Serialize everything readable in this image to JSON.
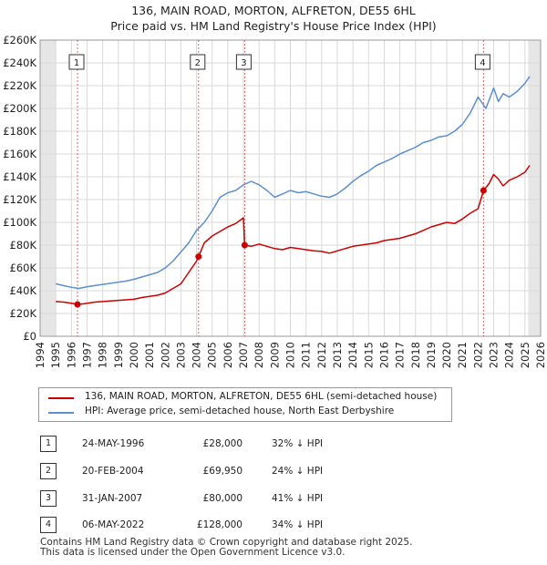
{
  "title_line1": "136, MAIN ROAD, MORTON, ALFRETON, DE55 6HL",
  "title_line2": "Price paid vs. HM Land Registry's House Price Index (HPI)",
  "chart_data": {
    "type": "line",
    "title": "136, MAIN ROAD, MORTON, ALFRETON, DE55 6HL — Price paid vs. HM Land Registry's House Price Index (HPI)",
    "xlabel": "",
    "ylabel": "",
    "xlim": [
      1994,
      2026
    ],
    "ylim": [
      0,
      260000
    ],
    "x_ticks": [
      1994,
      1995,
      1996,
      1997,
      1998,
      1999,
      2000,
      2001,
      2002,
      2003,
      2004,
      2005,
      2006,
      2007,
      2008,
      2009,
      2010,
      2011,
      2012,
      2013,
      2014,
      2015,
      2016,
      2017,
      2018,
      2019,
      2020,
      2021,
      2022,
      2023,
      2024,
      2025,
      2026
    ],
    "y_ticks": [
      0,
      20000,
      40000,
      60000,
      80000,
      100000,
      120000,
      140000,
      160000,
      180000,
      200000,
      220000,
      240000,
      260000
    ],
    "y_tick_labels": [
      "£0",
      "£20K",
      "£40K",
      "£60K",
      "£80K",
      "£100K",
      "£120K",
      "£140K",
      "£160K",
      "£180K",
      "£200K",
      "£220K",
      "£240K",
      "£260K"
    ],
    "grid": true,
    "shaded_regions": [
      [
        1994,
        1995
      ],
      [
        2025.2,
        2026
      ]
    ],
    "series": [
      {
        "name": "136, MAIN ROAD, MORTON, ALFRETON, DE55 6HL (semi-detached house)",
        "color": "#cc0000",
        "x": [
          1995.0,
          1995.5,
          1996.0,
          1996.39,
          1996.8,
          1997.5,
          1998.0,
          1998.5,
          1999.0,
          1999.5,
          2000.0,
          2000.5,
          2001.0,
          2001.5,
          2002.0,
          2002.5,
          2003.0,
          2003.5,
          2004.0,
          2004.13,
          2004.5,
          2005.0,
          2005.5,
          2006.0,
          2006.5,
          2007.0,
          2007.08,
          2007.5,
          2008.0,
          2008.5,
          2009.0,
          2009.5,
          2010.0,
          2010.5,
          2011.0,
          2011.5,
          2012.0,
          2012.5,
          2013.0,
          2013.5,
          2014.0,
          2014.5,
          2015.0,
          2015.5,
          2016.0,
          2016.5,
          2017.0,
          2017.5,
          2018.0,
          2018.5,
          2019.0,
          2019.5,
          2020.0,
          2020.5,
          2021.0,
          2021.5,
          2022.0,
          2022.35,
          2022.7,
          2023.0,
          2023.3,
          2023.6,
          2024.0,
          2024.5,
          2025.0,
          2025.3
        ],
        "values": [
          30500,
          30000,
          29000,
          28000,
          28500,
          30000,
          30500,
          31000,
          31500,
          32000,
          32500,
          34000,
          35000,
          36000,
          38000,
          42000,
          46000,
          56000,
          66000,
          69950,
          82000,
          88000,
          92000,
          96000,
          99000,
          104000,
          80000,
          79000,
          81000,
          79000,
          77000,
          76000,
          78000,
          77000,
          76000,
          75000,
          74500,
          73000,
          75000,
          77000,
          79000,
          80000,
          81000,
          82000,
          84000,
          85000,
          86000,
          88000,
          90000,
          93000,
          96000,
          98000,
          100000,
          99000,
          103000,
          108000,
          112000,
          128000,
          134000,
          142000,
          138000,
          132000,
          137000,
          140000,
          144000,
          150000
        ]
      },
      {
        "name": "HPI: Average price, semi-detached house, North East Derbyshire",
        "color": "#5b8fce",
        "x": [
          1995.0,
          1995.5,
          1996.0,
          1996.5,
          1997.0,
          1997.5,
          1998.0,
          1998.5,
          1999.0,
          1999.5,
          2000.0,
          2000.5,
          2001.0,
          2001.5,
          2002.0,
          2002.5,
          2003.0,
          2003.5,
          2004.0,
          2004.5,
          2005.0,
          2005.5,
          2006.0,
          2006.5,
          2007.0,
          2007.5,
          2008.0,
          2008.5,
          2009.0,
          2009.5,
          2010.0,
          2010.5,
          2011.0,
          2011.5,
          2012.0,
          2012.5,
          2013.0,
          2013.5,
          2014.0,
          2014.5,
          2015.0,
          2015.5,
          2016.0,
          2016.5,
          2017.0,
          2017.5,
          2018.0,
          2018.5,
          2019.0,
          2019.5,
          2020.0,
          2020.5,
          2021.0,
          2021.5,
          2022.0,
          2022.5,
          2023.0,
          2023.3,
          2023.6,
          2024.0,
          2024.5,
          2025.0,
          2025.3
        ],
        "values": [
          46000,
          44500,
          43000,
          42000,
          43500,
          44500,
          45500,
          46500,
          47500,
          48500,
          50000,
          52000,
          54000,
          56000,
          60000,
          66000,
          74000,
          82000,
          93000,
          100000,
          110000,
          122000,
          126000,
          128000,
          133000,
          136000,
          133000,
          128000,
          122000,
          125000,
          128000,
          126000,
          127000,
          125000,
          123000,
          122000,
          125000,
          130000,
          136000,
          141000,
          145000,
          150000,
          153000,
          156000,
          160000,
          163000,
          166000,
          170000,
          172000,
          175000,
          176000,
          180000,
          186000,
          196000,
          210000,
          200000,
          218000,
          206000,
          213000,
          210000,
          215000,
          222000,
          228000
        ]
      }
    ],
    "sale_markers": [
      {
        "label": "1",
        "x": 1996.39,
        "value": 28000
      },
      {
        "label": "2",
        "x": 2004.13,
        "value": 69950
      },
      {
        "label": "3",
        "x": 2007.08,
        "value": 80000
      },
      {
        "label": "4",
        "x": 2022.35,
        "value": 128000
      }
    ]
  },
  "legend": {
    "property_label": "136, MAIN ROAD, MORTON, ALFRETON, DE55 6HL (semi-detached house)",
    "hpi_label": "HPI: Average price, semi-detached house, North East Derbyshire",
    "property_color": "#cc0000",
    "hpi_color": "#5b8fce"
  },
  "sales": [
    {
      "num": "1",
      "date": "24-MAY-1996",
      "price": "£28,000",
      "hpi": "32% ↓ HPI"
    },
    {
      "num": "2",
      "date": "20-FEB-2004",
      "price": "£69,950",
      "hpi": "24% ↓ HPI"
    },
    {
      "num": "3",
      "date": "31-JAN-2007",
      "price": "£80,000",
      "hpi": "41% ↓ HPI"
    },
    {
      "num": "4",
      "date": "06-MAY-2022",
      "price": "£128,000",
      "hpi": "34% ↓ HPI"
    }
  ],
  "footer": {
    "line1": "Contains HM Land Registry data © Crown copyright and database right 2025.",
    "line2": "This data is licensed under the Open Government Licence v3.0."
  }
}
